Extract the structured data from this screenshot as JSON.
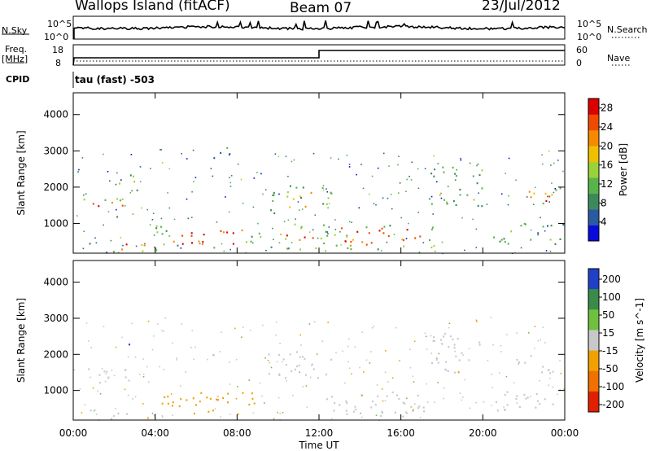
{
  "header": {
    "station": "Wallops Island (fitACF)",
    "beam": "Beam 07",
    "date": "23/Jul/2012"
  },
  "noise_panel": {
    "left_label": "N.Sky",
    "left_ticks": [
      "10^5",
      "10^0"
    ],
    "right_label": "N.Search",
    "right_ticks": [
      "10^5",
      "10^0"
    ]
  },
  "freq_panel": {
    "label_line1": "Freq.",
    "label_line2": "[MHz]",
    "left_ticks": [
      "18",
      "8"
    ],
    "right_label": "Nave",
    "right_ticks": [
      "60",
      "0"
    ]
  },
  "cpid": {
    "label": "CPID",
    "value": "tau (fast) -503"
  },
  "chart_data": [
    {
      "type": "heatmap",
      "panel": "power",
      "ylabel": "Slant Range [km]",
      "xlabel": "",
      "x_ticks": [
        "00:00",
        "04:00",
        "08:00",
        "12:00",
        "16:00",
        "20:00",
        "00:00"
      ],
      "y_ticks": [
        1000,
        2000,
        3000,
        4000
      ],
      "ylim": [
        180,
        4600
      ],
      "xlim_hours": [
        0,
        24
      ],
      "colorbar": {
        "label": "Power [dB]",
        "ticks": [
          4,
          8,
          12,
          16,
          20,
          24,
          28
        ],
        "range": [
          0,
          30
        ],
        "colors": [
          "#0a0adc",
          "#2a5aa0",
          "#3c8a5a",
          "#58b44a",
          "#9ad23a",
          "#f0c000",
          "#f58a00",
          "#f04a00",
          "#dc0000"
        ]
      },
      "echo_regions": [
        {
          "t0": 0.5,
          "t1": 2.8,
          "r0": 1200,
          "r1": 1700,
          "level": 26
        },
        {
          "t0": 0.5,
          "t1": 4.2,
          "r0": 220,
          "r1": 500,
          "level": 20
        },
        {
          "t0": 4.0,
          "t1": 9.2,
          "r0": 350,
          "r1": 1000,
          "level": 27
        },
        {
          "t0": 2.0,
          "t1": 3.2,
          "r0": 1900,
          "r1": 2400,
          "level": 12
        },
        {
          "t0": 6.8,
          "t1": 7.6,
          "r0": 2800,
          "r1": 3400,
          "level": 10
        },
        {
          "t0": 9.5,
          "t1": 12.6,
          "r0": 1300,
          "r1": 2100,
          "level": 14
        },
        {
          "t0": 9.6,
          "t1": 12.4,
          "r0": 250,
          "r1": 1000,
          "level": 22
        },
        {
          "t0": 12.0,
          "t1": 17.8,
          "r0": 300,
          "r1": 1000,
          "level": 24
        },
        {
          "t0": 17.3,
          "t1": 20.0,
          "r0": 1500,
          "r1": 2600,
          "level": 12
        },
        {
          "t0": 20.5,
          "t1": 23.9,
          "r0": 450,
          "r1": 1050,
          "level": 12
        },
        {
          "t0": 21.6,
          "t1": 23.9,
          "r0": 1500,
          "r1": 2000,
          "level": 22
        }
      ]
    },
    {
      "type": "heatmap",
      "panel": "velocity",
      "ylabel": "Slant Range [km]",
      "xlabel": "Time UT",
      "x_ticks": [
        "00:00",
        "04:00",
        "08:00",
        "12:00",
        "16:00",
        "20:00",
        "00:00"
      ],
      "y_ticks": [
        1000,
        2000,
        3000,
        4000
      ],
      "ylim": [
        180,
        4600
      ],
      "xlim_hours": [
        0,
        24
      ],
      "colorbar": {
        "label": "Velocity [m s^-1]",
        "ticks": [
          200,
          100,
          50,
          15,
          -15,
          -50,
          -100,
          -200
        ],
        "colors": [
          "#2040c8",
          "#3a8a4a",
          "#70c040",
          "#c8c8c8",
          "#f0a000",
          "#f07000",
          "#e02000"
        ]
      },
      "echo_regions": [
        {
          "t0": 0.5,
          "t1": 2.8,
          "r0": 1200,
          "r1": 1700,
          "level": 0
        },
        {
          "t0": 4.0,
          "t1": 9.0,
          "r0": 350,
          "r1": 1000,
          "level": -30
        },
        {
          "t0": 0.5,
          "t1": 4.0,
          "r0": 220,
          "r1": 500,
          "level": -10
        },
        {
          "t0": 9.5,
          "t1": 12.6,
          "r0": 1300,
          "r1": 2100,
          "level": 0
        },
        {
          "t0": 12.0,
          "t1": 17.8,
          "r0": 300,
          "r1": 1000,
          "level": 0
        },
        {
          "t0": 17.3,
          "t1": 20.0,
          "r0": 1500,
          "r1": 2600,
          "level": 0
        },
        {
          "t0": 20.5,
          "t1": 23.9,
          "r0": 450,
          "r1": 1050,
          "level": 0
        },
        {
          "t0": 21.6,
          "t1": 23.9,
          "r0": 1500,
          "r1": 2000,
          "level": 0
        },
        {
          "t0": 2.5,
          "t1": 2.8,
          "r0": 2250,
          "r1": 2450,
          "level": 200
        }
      ]
    }
  ],
  "colors": {
    "power_red": "#dc0000",
    "velocity_grey": "#c8c8c8",
    "axis": "#000000"
  }
}
